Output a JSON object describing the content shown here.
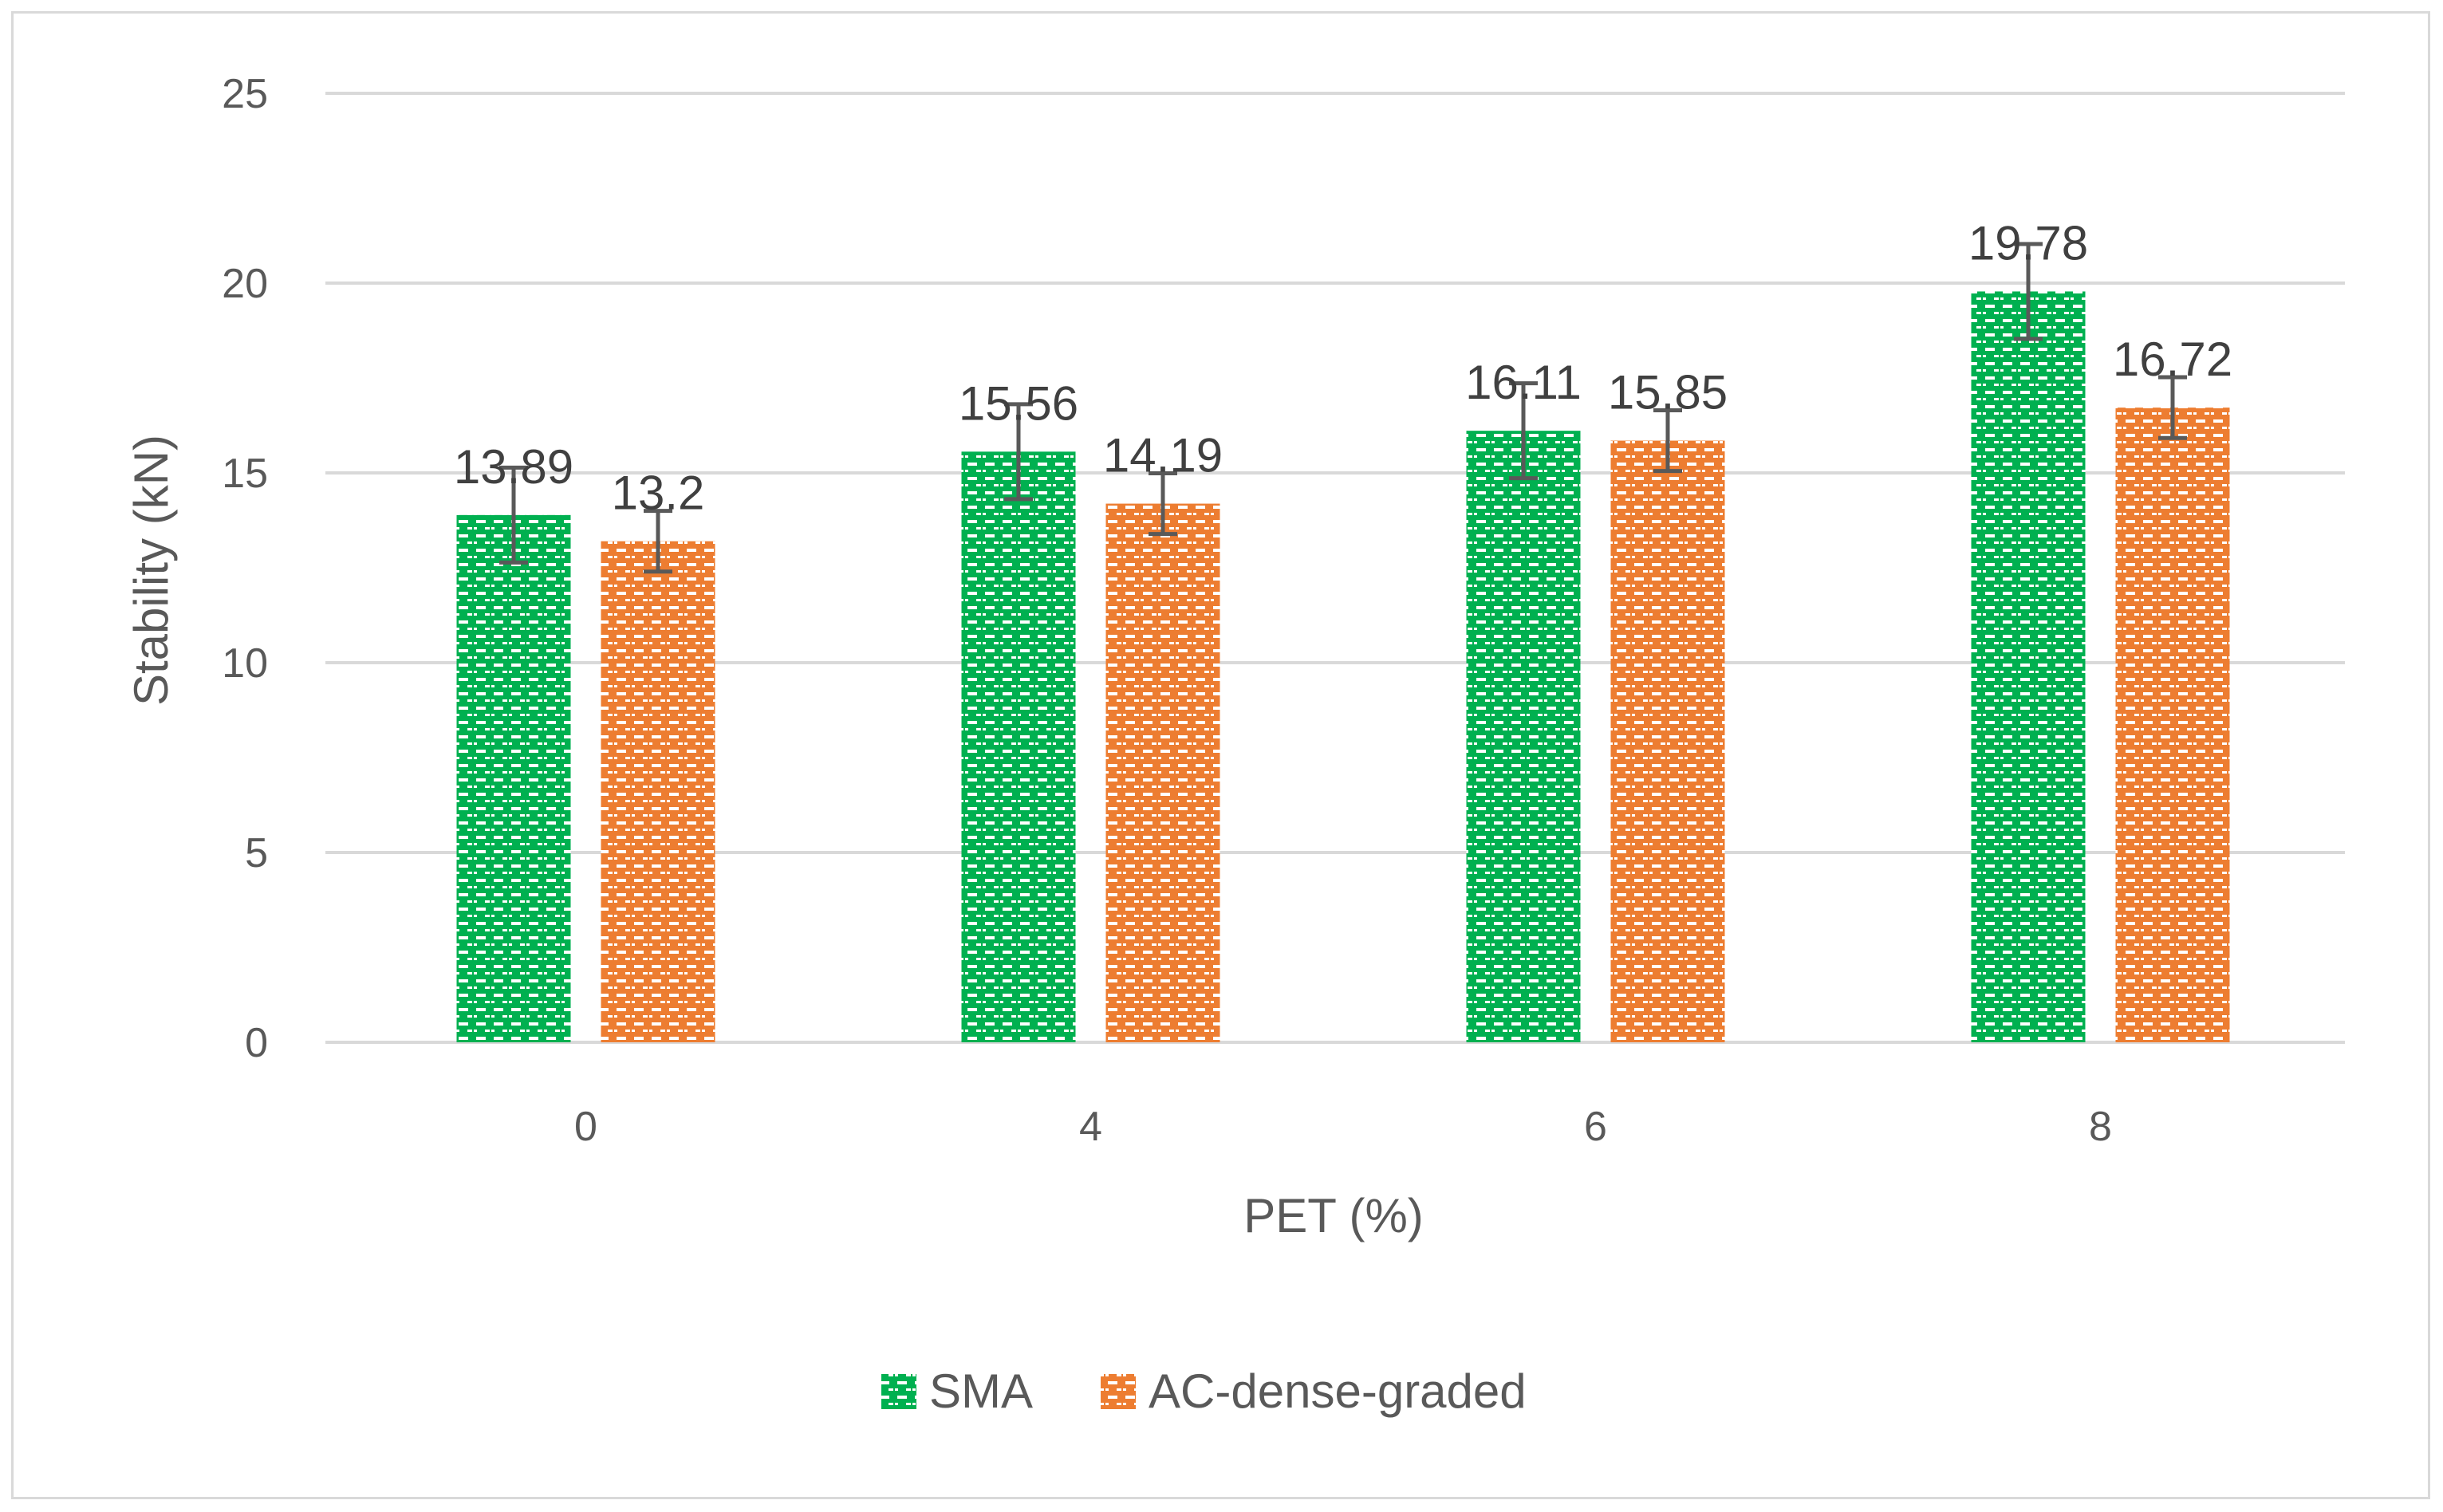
{
  "chart_data": {
    "type": "bar",
    "title": "",
    "xlabel": "PET (%)",
    "ylabel": "Stability (kN)",
    "categories": [
      "0",
      "4",
      "6",
      "8"
    ],
    "ylim": [
      0,
      25
    ],
    "yticks": [
      0,
      5,
      10,
      15,
      20,
      25
    ],
    "grid": true,
    "legend_position": "bottom",
    "series": [
      {
        "name": "SMA",
        "color": "#00b050",
        "values": [
          13.89,
          15.56,
          16.11,
          19.78
        ],
        "labels": [
          "13.89",
          "15.56",
          "16.11",
          "19.78"
        ],
        "error": [
          1.25,
          1.25,
          1.25,
          1.25
        ]
      },
      {
        "name": "AC-dense-graded",
        "color": "#ed7d31",
        "values": [
          13.2,
          14.19,
          15.85,
          16.72
        ],
        "labels": [
          "13.2",
          "14.19",
          "15.85",
          "16.72"
        ],
        "error": [
          0.8,
          0.8,
          0.8,
          0.8
        ]
      }
    ]
  }
}
